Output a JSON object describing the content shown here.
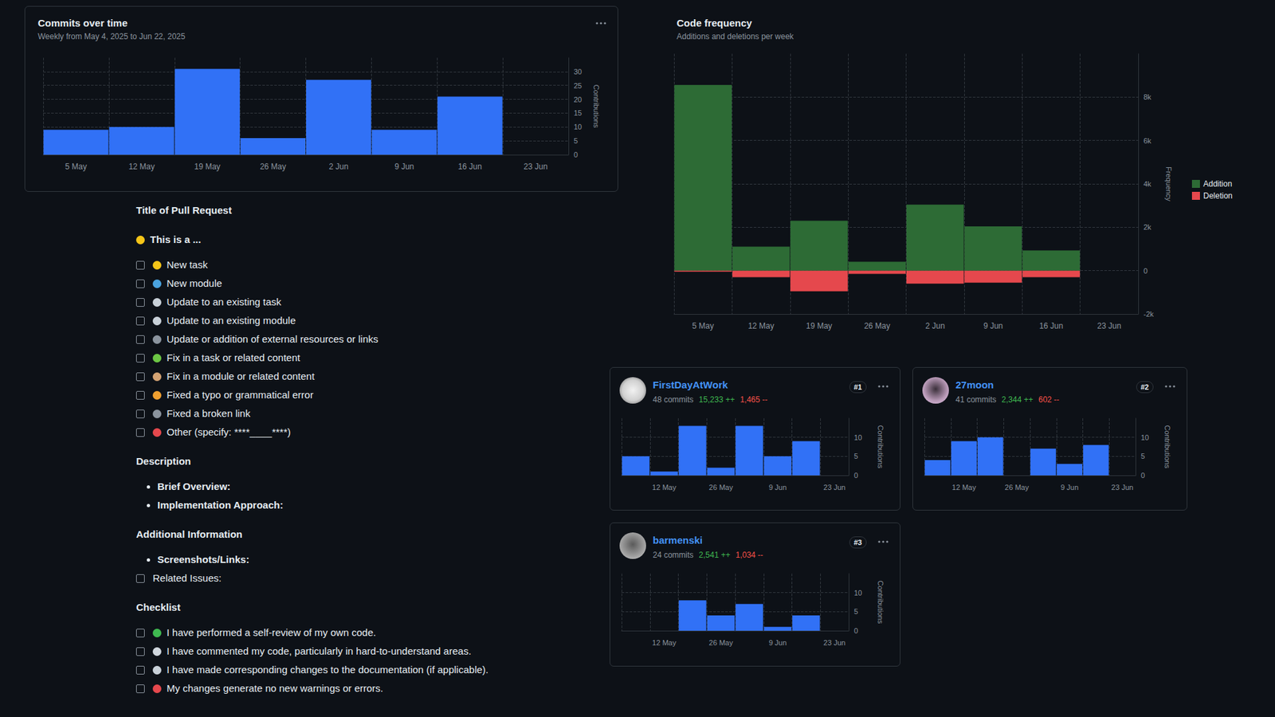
{
  "chart_data": [
    {
      "type": "bar",
      "title": "Commits over time",
      "subtitle": "Weekly from May 4, 2025 to Jun 22, 2025",
      "categories": [
        "5 May",
        "12 May",
        "19 May",
        "26 May",
        "2 Jun",
        "9 Jun",
        "16 Jun",
        "23 Jun"
      ],
      "values": [
        9,
        10,
        31,
        6,
        27,
        9,
        21,
        0
      ],
      "color": "#3171f6",
      "ylabel": "Contributions",
      "ylim": [
        0,
        35
      ],
      "yticks": [
        0,
        5,
        10,
        15,
        20,
        25,
        30
      ],
      "grid": true
    },
    {
      "type": "bar",
      "title": "Code frequency",
      "subtitle": "Additions and deletions per week",
      "categories": [
        "5 May",
        "12 May",
        "19 May",
        "26 May",
        "2 Jun",
        "9 Jun",
        "16 Jun",
        "23 Jun"
      ],
      "series": [
        {
          "name": "Addition",
          "color": "#2d6b35",
          "values": [
            8560,
            1110,
            2300,
            410,
            3040,
            2040,
            930,
            0
          ]
        },
        {
          "name": "Deletion",
          "color": "#e5484d",
          "values": [
            -50,
            -300,
            -950,
            -150,
            -600,
            -550,
            -300,
            0
          ]
        }
      ],
      "stacked": true,
      "ylabel": "Frequency",
      "ylim": [
        -2000,
        10000
      ],
      "yticks": [
        {
          "value": -2000,
          "label": "-2k"
        },
        0,
        {
          "value": 2000,
          "label": "2k"
        },
        {
          "value": 4000,
          "label": "4k"
        },
        {
          "value": 6000,
          "label": "6k"
        },
        {
          "value": 8000,
          "label": "8k"
        }
      ],
      "grid": true,
      "legend": "right"
    },
    {
      "type": "bar",
      "title": "FirstDayAtWork",
      "subtitle": "48 commits",
      "annotations": [
        "#1",
        "15,233 ++",
        "1,465 --"
      ],
      "categories": [
        null,
        "12 May",
        null,
        "26 May",
        null,
        "9 Jun",
        null,
        "23 Jun"
      ],
      "values": [
        5,
        1,
        13,
        2,
        13,
        5,
        9,
        0
      ],
      "color": "#3171f6",
      "ylabel": "Contributions",
      "ylim": [
        0,
        15
      ],
      "yticks": [
        0,
        5,
        10
      ],
      "grid": true
    },
    {
      "type": "bar",
      "title": "27moon",
      "subtitle": "41 commits",
      "annotations": [
        "#2",
        "2,344 ++",
        "602 --"
      ],
      "categories": [
        null,
        "12 May",
        null,
        "26 May",
        null,
        "9 Jun",
        null,
        "23 Jun"
      ],
      "values": [
        4,
        9,
        10,
        0,
        7,
        3,
        8,
        0
      ],
      "color": "#3171f6",
      "ylabel": "Contributions",
      "ylim": [
        0,
        15
      ],
      "yticks": [
        0,
        5,
        10
      ],
      "grid": true
    },
    {
      "type": "bar",
      "title": "barmenski",
      "subtitle": "24 commits",
      "annotations": [
        "#3",
        "2,541 ++",
        "1,034 --"
      ],
      "categories": [
        null,
        "12 May",
        null,
        "26 May",
        null,
        "9 Jun",
        null,
        "23 Jun"
      ],
      "values": [
        0,
        0,
        8,
        4,
        7,
        1,
        4,
        0
      ],
      "color": "#3171f6",
      "ylabel": "Contributions",
      "ylim": [
        0,
        15
      ],
      "yticks": [
        0,
        5,
        10
      ],
      "grid": true
    }
  ],
  "document": {
    "title": "Title of Pull Request",
    "sections": [
      {
        "heading": "This is a ...",
        "checkboxes": [
          "New task",
          "New module",
          "Update to an existing task",
          "Update to an existing module",
          "Update or addition of external resources or links",
          "Fix in a task or related content",
          "Fix in a module or related content",
          "Fixed a typo or grammatical error",
          "Fixed a broken link",
          "Other (specify: ****____****)"
        ]
      },
      {
        "heading": "Description",
        "bullets": [
          "Brief Overview:",
          "Implementation Approach:"
        ]
      },
      {
        "heading": "Additional Information",
        "bullets": [
          "Screenshots/Links:"
        ],
        "checkboxes": [
          "Related Issues:"
        ]
      },
      {
        "heading": "Checklist",
        "checkboxes": [
          "I have performed a self-review of my own code.",
          "I have commented my code, particularly in hard-to-understand areas.",
          "I have made corresponding changes to the documentation (if applicable).",
          "My changes generate no new warnings or errors."
        ]
      }
    ]
  }
}
